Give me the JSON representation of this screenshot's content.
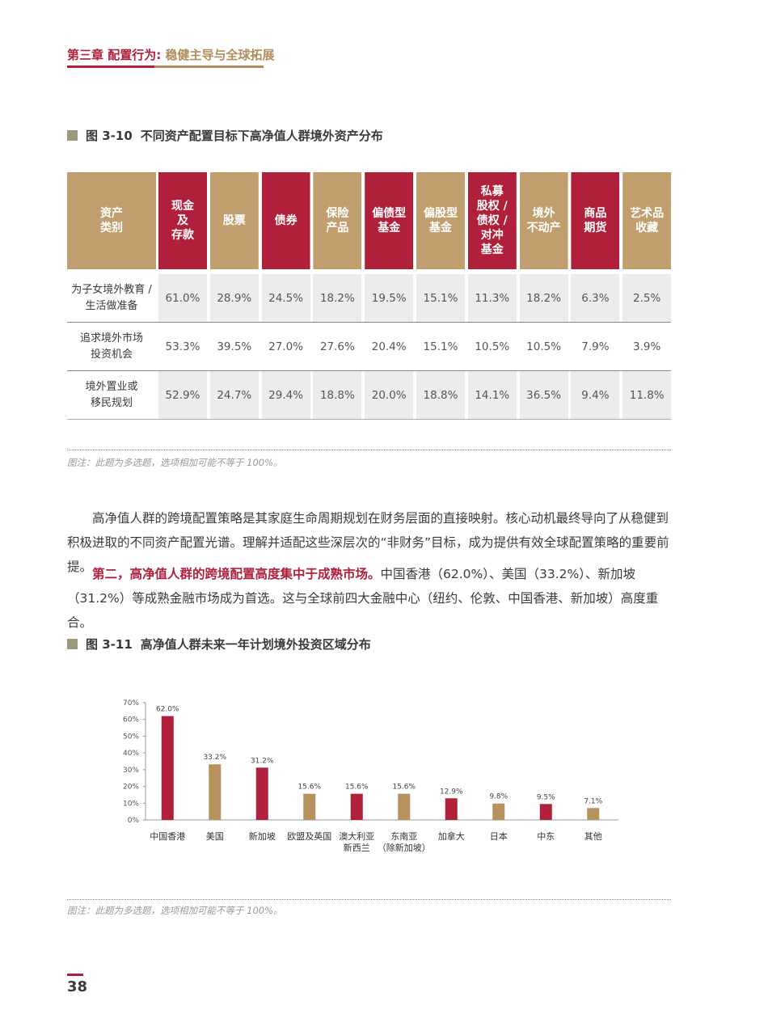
{
  "header": {
    "chapter": "第三章",
    "section": "配置行为:",
    "subtitle": "稳健主导与全球拓展"
  },
  "table_figure": {
    "number": "图 3-10",
    "title": "不同资产配置目标下高净值人群境外资产分布",
    "columns": [
      "资产\n类别",
      "现金\n及\n存款",
      "股票",
      "债券",
      "保险\n产品",
      "偏债型\n基金",
      "偏股型\n基金",
      "私募\n股权 /\n债权 /\n对冲\n基金",
      "境外\n不动产",
      "商品\n期货",
      "艺术品\n收藏"
    ],
    "column_colors": [
      "gold",
      "red",
      "gold",
      "red",
      "gold",
      "red",
      "gold",
      "red",
      "gold",
      "red",
      "gold"
    ],
    "rows": [
      {
        "label": "为子女境外教育 /\n生活做准备",
        "values": [
          "61.0%",
          "28.9%",
          "24.5%",
          "18.2%",
          "19.5%",
          "15.1%",
          "11.3%",
          "18.2%",
          "6.3%",
          "2.5%"
        ]
      },
      {
        "label": "追求境外市场\n投资机会",
        "values": [
          "53.3%",
          "39.5%",
          "27.0%",
          "27.6%",
          "20.4%",
          "15.1%",
          "10.5%",
          "10.5%",
          "7.9%",
          "3.9%"
        ]
      },
      {
        "label": "境外置业或\n移民规划",
        "values": [
          "52.9%",
          "24.7%",
          "29.4%",
          "18.8%",
          "20.0%",
          "18.8%",
          "14.1%",
          "36.5%",
          "9.4%",
          "11.8%"
        ]
      }
    ],
    "note": "图注：此题为多选题，选项相加可能不等于 100%。"
  },
  "body": {
    "para1": "高净值人群的跨境配置策略是其家庭生命周期规划在财务层面的直接映射。核心动机最终导向了从稳健到积极进取的不同资产配置光谱。理解并适配这些深层次的“非财务”目标，成为提供有效全球配置策略的重要前提。",
    "para2_em": "第二，高净值人群的跨境配置高度集中于成熟市场。",
    "para2_rest": "中国香港（62.0%）、美国（33.2%）、新加坡（31.2%）等成熟金融市场成为首选。这与全球前四大金融中心（纽约、伦敦、中国香港、新加坡）高度重合。"
  },
  "chart_figure": {
    "number": "图 3-11",
    "title": "高净值人群未来一年计划境外投资区域分布",
    "note": "图注：此题为多选题，选项相加可能不等于 100%。"
  },
  "chart_data": {
    "type": "bar",
    "categories": [
      "中国香港",
      "美国",
      "新加坡",
      "欧盟及英国",
      "澳大利亚\n新西兰",
      "东南亚\n（除新加坡）",
      "加拿大",
      "日本",
      "中东",
      "其他"
    ],
    "values": [
      62.0,
      33.2,
      31.2,
      15.6,
      15.6,
      15.6,
      12.9,
      9.8,
      9.5,
      7.1
    ],
    "data_labels": [
      "62.0%",
      "33.2%",
      "31.2%",
      "15.6%",
      "15.6%",
      "15.6%",
      "12.9%",
      "9.8%",
      "9.5%",
      "7.1%"
    ],
    "bar_colors": [
      "#b0203a",
      "#b8925e",
      "#b0203a",
      "#b8925e",
      "#b0203a",
      "#b8925e",
      "#b0203a",
      "#b8925e",
      "#b0203a",
      "#b8925e"
    ],
    "yticks": [
      "0%",
      "10%",
      "20%",
      "30%",
      "40%",
      "50%",
      "60%",
      "70%"
    ],
    "ylim": [
      0,
      70
    ],
    "grid": false
  },
  "footer": {
    "page_number": "38"
  },
  "colors": {
    "brand_red": "#b0203a",
    "brand_gold": "#c09e6e"
  }
}
